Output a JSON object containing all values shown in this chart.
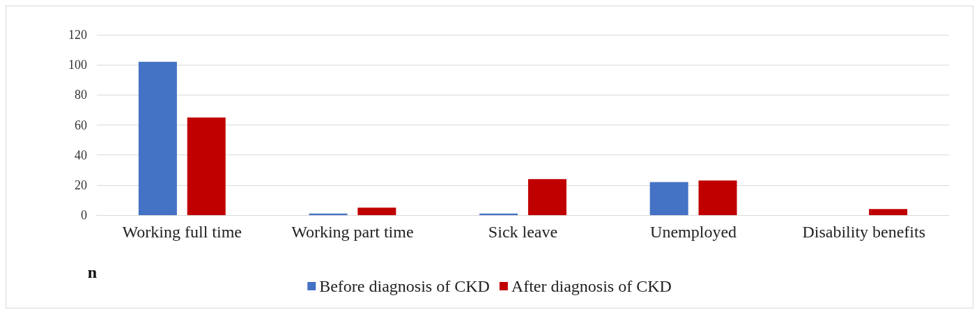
{
  "chart_data": {
    "type": "bar",
    "ylabel": "n",
    "categories": [
      "Working full time",
      "Working part time",
      "Sick leave",
      "Unemployed",
      "Disability benefits"
    ],
    "series": [
      {
        "name": "Before diagnosis of CKD",
        "color": "#4472c4",
        "values": [
          102,
          1,
          1,
          22,
          0
        ]
      },
      {
        "name": "After diagnosis of CKD",
        "color": "#c00000",
        "values": [
          65,
          5,
          24,
          23,
          4
        ]
      }
    ],
    "ylim": [
      0,
      120
    ],
    "yticks": [
      0,
      20,
      40,
      60,
      80,
      100,
      120
    ],
    "grid": "y",
    "legend": "bottom"
  }
}
